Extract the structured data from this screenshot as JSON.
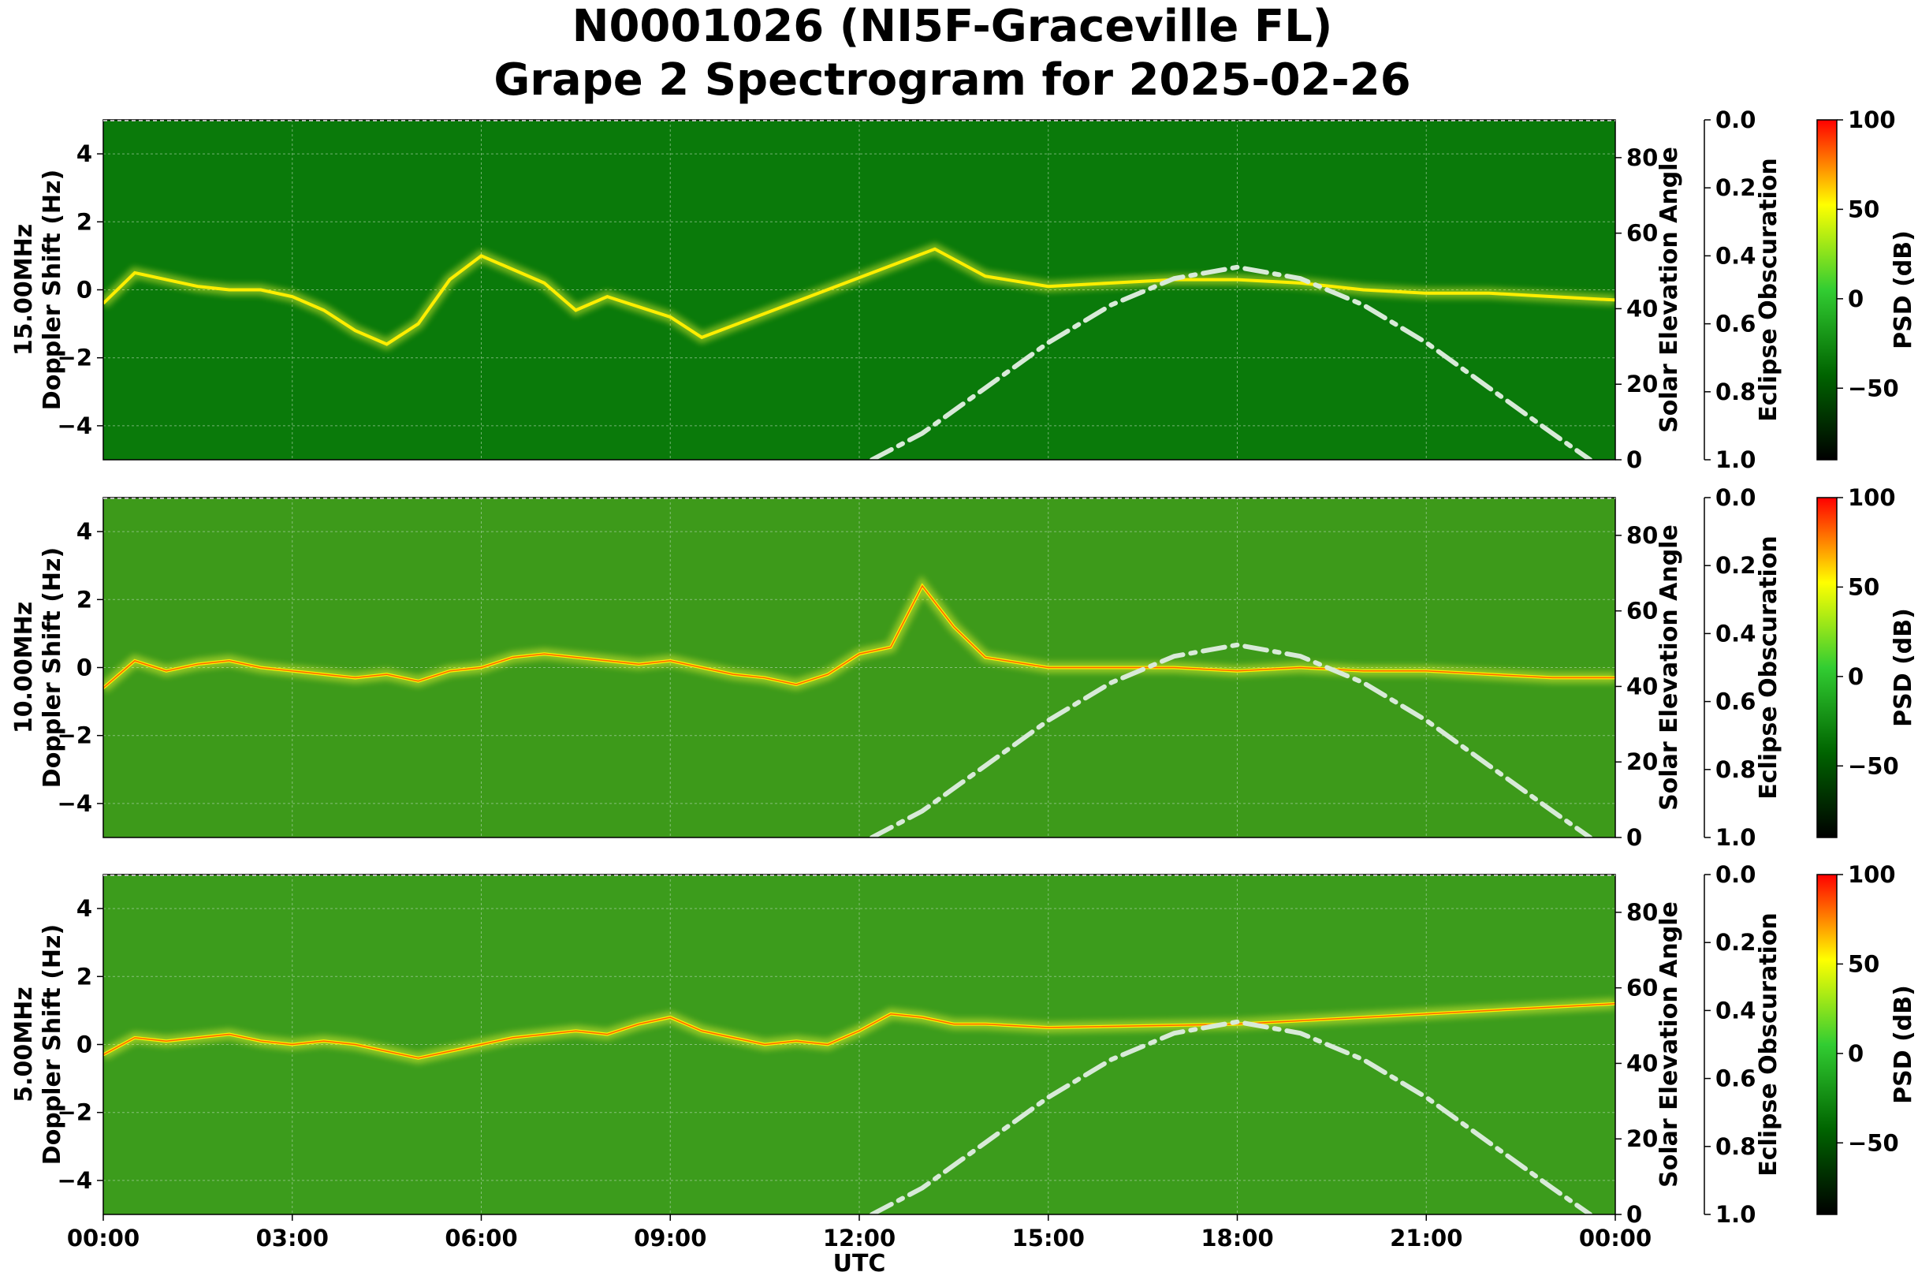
{
  "title_line1": "N0001026 (NI5F-Graceville FL)",
  "title_line2": "Grape 2 Spectrogram for 2025-02-26",
  "chart_data": {
    "type": "heatmap",
    "x_axis": {
      "label": "UTC",
      "range_hours": [
        0,
        24
      ],
      "tick_hours": [
        0,
        3,
        6,
        9,
        12,
        15,
        18,
        21,
        24
      ],
      "tick_labels": [
        "00:00",
        "03:00",
        "06:00",
        "09:00",
        "12:00",
        "15:00",
        "18:00",
        "21:00",
        "00:00"
      ]
    },
    "y_axis": {
      "label": "Doppler Shift (Hz)",
      "range": [
        -5,
        5
      ],
      "ticks": [
        4,
        2,
        0,
        -2,
        -4
      ],
      "tick_labels": [
        "4",
        "2",
        "0",
        "−2",
        "−4"
      ]
    },
    "elevation_axis": {
      "label": "Solar Elevation Angle",
      "range": [
        0,
        90
      ],
      "ticks": [
        0,
        20,
        40,
        60,
        80
      ]
    },
    "eclipse_axis": {
      "label": "Eclipse Obscuration",
      "range": [
        0.0,
        1.0
      ],
      "inverted": true,
      "tick_labels": [
        "0.0",
        "0.2",
        "0.4",
        "0.6",
        "0.8",
        "1.0"
      ]
    },
    "colorbar": {
      "label": "PSD (dB)",
      "range": [
        -90,
        100
      ],
      "ticks": [
        100,
        50,
        0,
        -50
      ],
      "tick_labels": [
        "100",
        "50",
        "0",
        "−50"
      ],
      "colormap": [
        "#000000",
        "#006400",
        "#32cd32",
        "#ffff00",
        "#ff0000"
      ]
    },
    "grid": true,
    "solar_elevation_curve": {
      "style": "dash-dot",
      "color": "#d8ead8",
      "hours": [
        12.2,
        13,
        14,
        15,
        16,
        17,
        18,
        19,
        20,
        21,
        22,
        23,
        23.6
      ],
      "elevation_deg": [
        0,
        7,
        19,
        31,
        41,
        48,
        51,
        48,
        41,
        31,
        19,
        7,
        0
      ]
    },
    "panels": [
      {
        "ylabel_prefix": "15.00MHz",
        "background": "#0a7a0a",
        "trace": {
          "hours": [
            0,
            0.5,
            1,
            1.5,
            2,
            2.5,
            3,
            3.5,
            4,
            4.5,
            5,
            5.5,
            6,
            6.5,
            7,
            7.5,
            8,
            8.5,
            9,
            9.5,
            13.2,
            14,
            15,
            16,
            17,
            18,
            19,
            20,
            21,
            22,
            23,
            24
          ],
          "doppler_hz": [
            -0.4,
            0.5,
            0.3,
            0.1,
            0.0,
            0.0,
            -0.2,
            -0.6,
            -1.2,
            -1.6,
            -1.0,
            0.3,
            1.0,
            0.6,
            0.2,
            -0.6,
            -0.2,
            -0.5,
            -0.8,
            -1.4,
            1.2,
            0.4,
            0.1,
            0.2,
            0.3,
            0.3,
            0.2,
            0.0,
            -0.1,
            -0.1,
            -0.2,
            -0.3
          ]
        }
      },
      {
        "ylabel_prefix": "10.00MHz",
        "background": "#3d9a1a",
        "trace": {
          "hours": [
            0,
            0.5,
            1,
            1.5,
            2,
            2.5,
            3,
            3.5,
            4,
            4.5,
            5,
            5.5,
            6,
            6.5,
            7,
            7.5,
            8,
            8.5,
            9,
            9.5,
            10,
            10.5,
            11,
            11.5,
            12,
            12.5,
            13,
            13.5,
            14,
            15,
            16,
            17,
            18,
            19,
            20,
            21,
            22,
            23,
            24
          ],
          "doppler_hz": [
            -0.6,
            0.2,
            -0.1,
            0.1,
            0.2,
            0.0,
            -0.1,
            -0.2,
            -0.3,
            -0.2,
            -0.4,
            -0.1,
            0.0,
            0.3,
            0.4,
            0.3,
            0.2,
            0.1,
            0.2,
            0.0,
            -0.2,
            -0.3,
            -0.5,
            -0.2,
            0.4,
            0.6,
            2.4,
            1.2,
            0.3,
            0.0,
            0.0,
            0.0,
            -0.1,
            0.0,
            -0.1,
            -0.1,
            -0.2,
            -0.3,
            -0.3
          ]
        }
      },
      {
        "ylabel_prefix": "5.00MHz",
        "background": "#3c9c1c",
        "trace": {
          "hours": [
            0,
            0.5,
            1,
            1.5,
            2,
            2.5,
            3,
            3.5,
            4,
            4.5,
            5,
            5.5,
            6,
            6.5,
            7,
            7.5,
            8,
            8.5,
            9,
            9.5,
            10,
            10.5,
            11,
            11.5,
            12,
            12.5,
            13,
            13.5,
            14,
            15,
            18,
            21,
            24
          ],
          "doppler_hz": [
            -0.3,
            0.2,
            0.1,
            0.2,
            0.3,
            0.1,
            0.0,
            0.1,
            0.0,
            -0.2,
            -0.4,
            -0.2,
            0.0,
            0.2,
            0.3,
            0.4,
            0.3,
            0.6,
            0.8,
            0.4,
            0.2,
            0.0,
            0.1,
            0.0,
            0.4,
            0.9,
            0.8,
            0.6,
            0.6,
            0.5,
            0.6,
            0.9,
            1.2
          ]
        }
      }
    ]
  }
}
